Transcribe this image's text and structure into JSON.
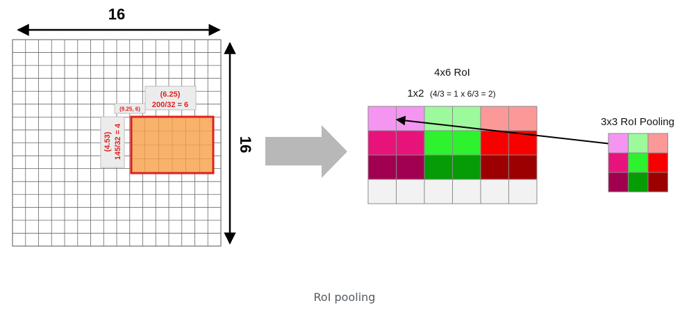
{
  "feature_map": {
    "width_label": "16",
    "height_label": "16",
    "roi_height_text": [
      "(4.53)",
      "145/32 = 4"
    ],
    "roi_width_text": [
      "(6.25)",
      "200/32 = 6"
    ],
    "roi_origin_text": "(9.25, 6)",
    "roi_fill_color": "#f9b26b",
    "roi_border_color": "#e02020"
  },
  "roi": {
    "title": "4x6 RoI",
    "subtitle_main": "1x2",
    "subtitle_detail": "(4/3 = 1 x 6/3 = 2)",
    "rows": [
      [
        "#f595f2",
        "#f595f2",
        "#9cf99c",
        "#9cf99c",
        "#fb9898",
        "#fb9898"
      ],
      [
        "#e8137a",
        "#e8137a",
        "#2df22d",
        "#2df22d",
        "#f80000",
        "#f80000"
      ],
      [
        "#a10050",
        "#a10050",
        "#059c05",
        "#059c05",
        "#9c0000",
        "#9c0000"
      ],
      [
        "#f2f2f2",
        "#f2f2f2",
        "#f2f2f2",
        "#f2f2f2",
        "#f2f2f2",
        "#f2f2f2"
      ]
    ]
  },
  "pooling": {
    "title": "3x3 RoI Pooling",
    "rows": [
      [
        "#f595f2",
        "#9cf99c",
        "#fb9898"
      ],
      [
        "#e8137a",
        "#2df22d",
        "#f80000"
      ],
      [
        "#a10050",
        "#059c05",
        "#9c0000"
      ]
    ]
  },
  "caption": "RoI pooling"
}
